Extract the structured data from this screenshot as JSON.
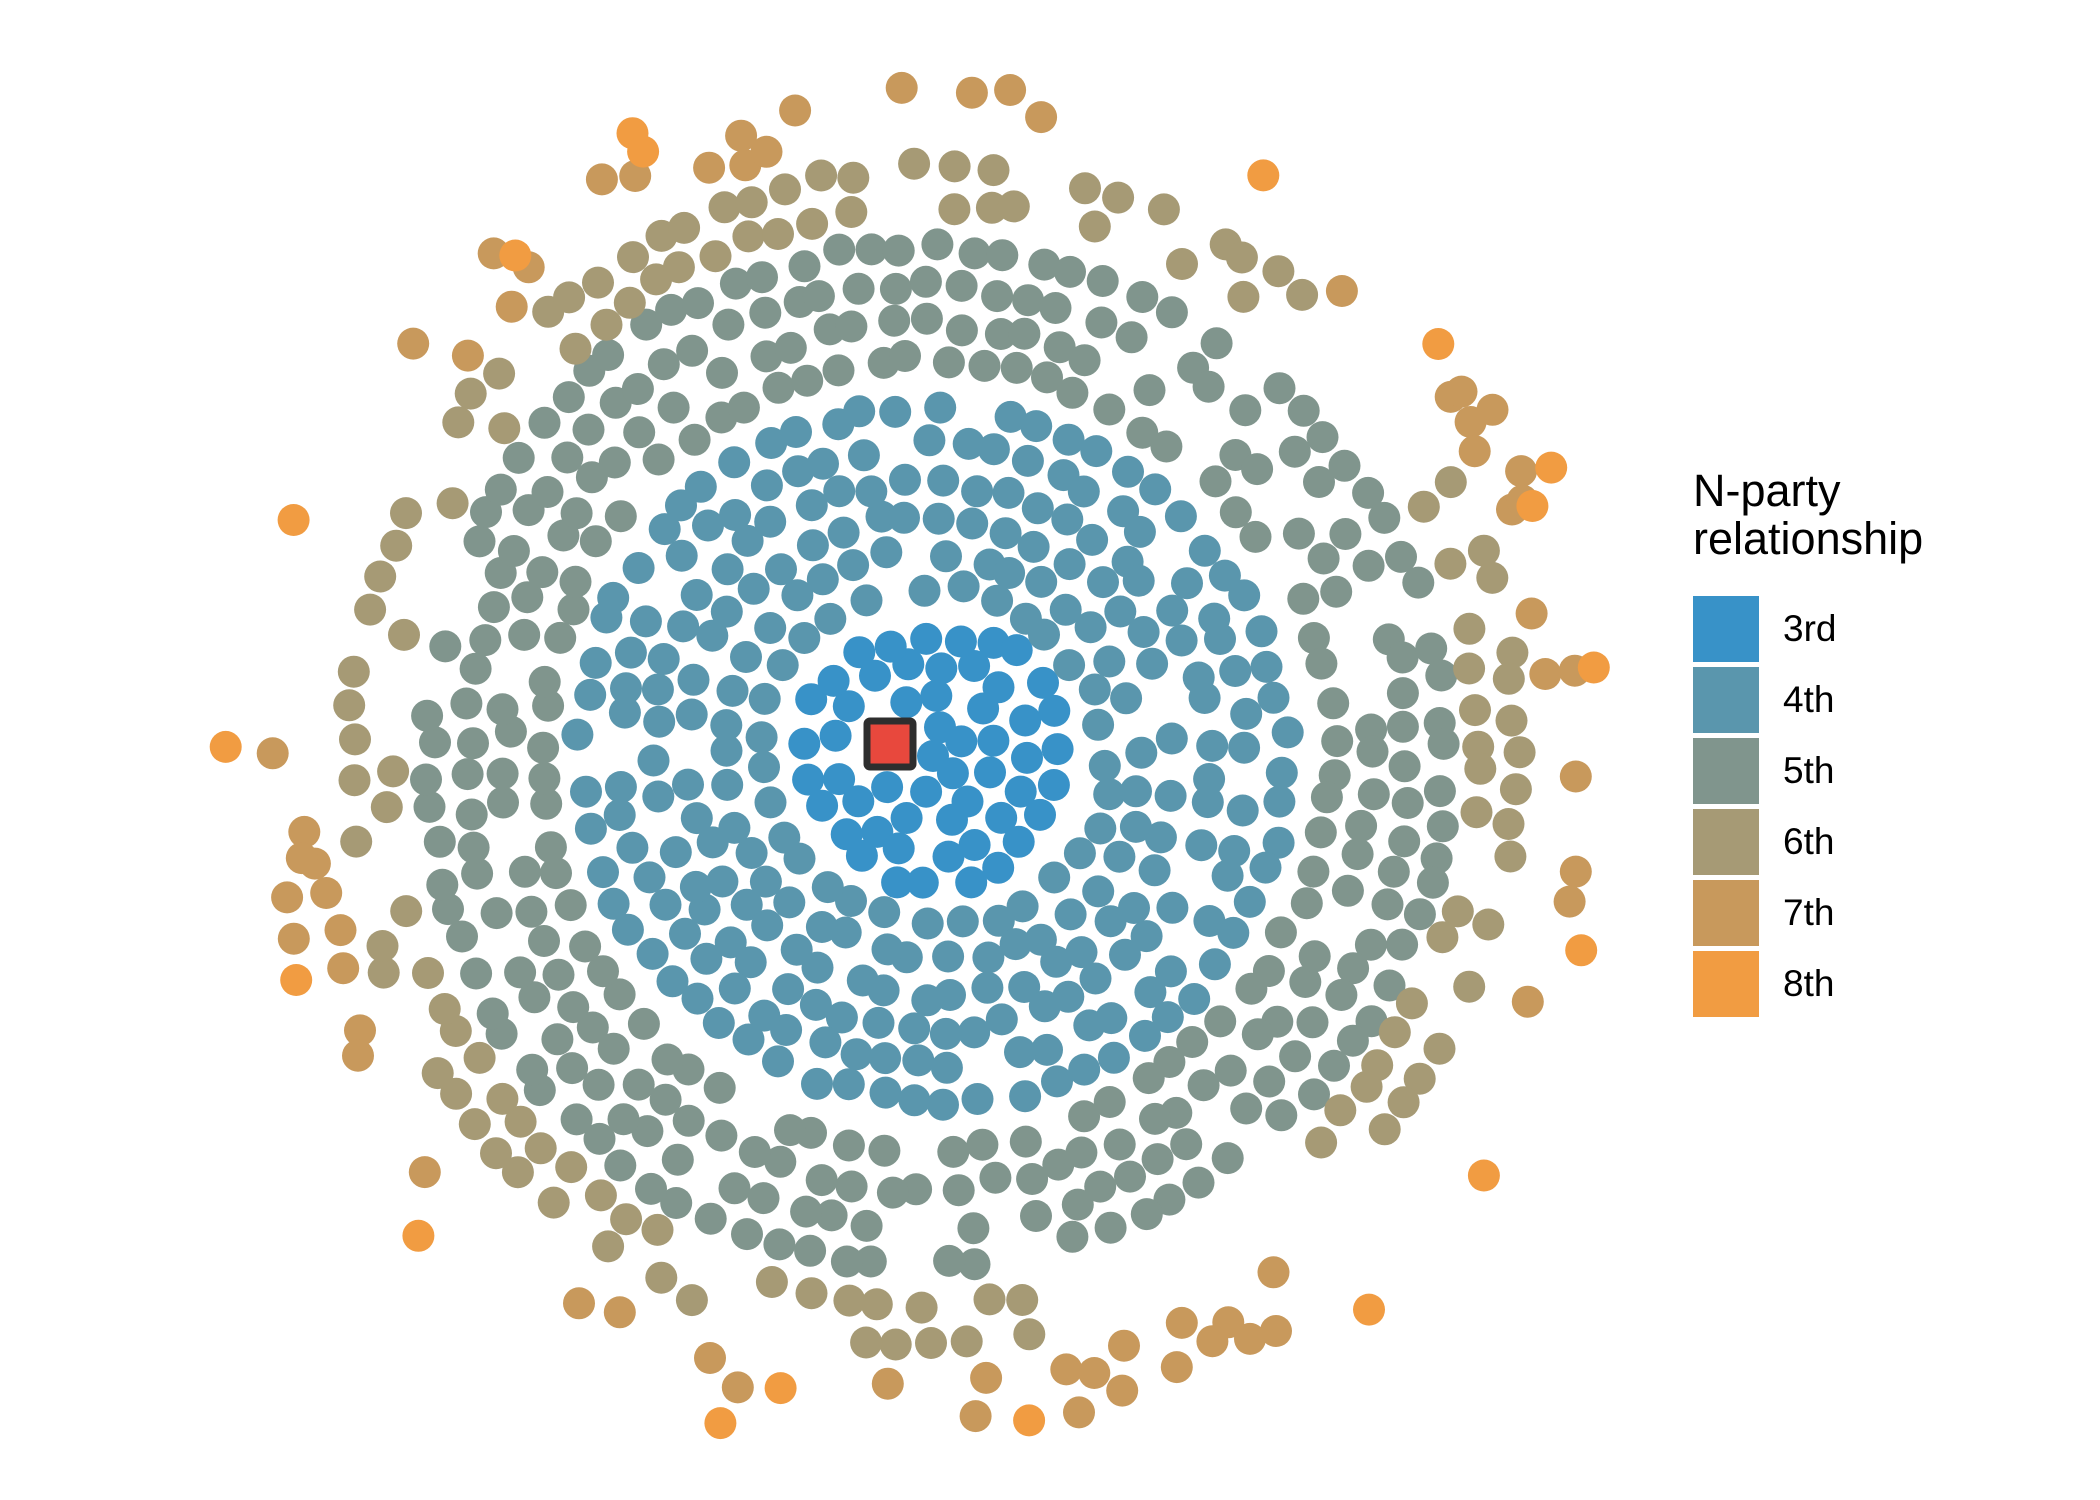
{
  "chart_data": {
    "type": "dot-distribution",
    "description": "Concentric rings of dots around a focal individual (red square); each dot is one person, colored by degree of N-party relationship to the focal individual. Counts are estimated from the figure.",
    "legend_title": "N-party relationship",
    "categories": [
      "3rd",
      "4th",
      "5th",
      "6th",
      "7th",
      "8th"
    ],
    "series": [
      {
        "name": "3rd",
        "color": "#3892C8",
        "count": 62,
        "ring": {
          "r_inner": 0,
          "r_outer": 142
        }
      },
      {
        "name": "4th",
        "color": "#5A96AD",
        "count": 265,
        "ring": {
          "r_inner": 156,
          "r_outer": 364
        }
      },
      {
        "name": "5th",
        "color": "#80958D",
        "count": 300,
        "ring": {
          "r_inner": 379,
          "r_outer": 524
        }
      },
      {
        "name": "6th",
        "color": "#A69A75",
        "count": 122,
        "ring": {
          "r_inner": 532,
          "r_outer": 602
        }
      },
      {
        "name": "7th",
        "color": "#C8995C",
        "count": 54,
        "ring": {
          "r_inner": 610,
          "r_outer": 672
        },
        "scatter_extra": true
      },
      {
        "name": "8th",
        "color": "#F19C42",
        "count": 18,
        "ring": {
          "r_inner": 638,
          "r_outer": 716
        },
        "scatter": true
      }
    ],
    "center": {
      "x": 933,
      "y": 756
    },
    "dot_radius": 16,
    "focal_marker": {
      "shape": "square",
      "x": 890,
      "y": 744,
      "size": 46,
      "fill": "#E8483D",
      "stroke": "#2E2E2E",
      "stroke_width": 7
    },
    "background": "#FFFFFF",
    "legend_position": "right",
    "grid": false
  },
  "legend": {
    "title_line1": "N-party",
    "title_line2": "relationship",
    "items": [
      {
        "label": "3rd",
        "color": "#3892C8"
      },
      {
        "label": "4th",
        "color": "#5A96AD"
      },
      {
        "label": "5th",
        "color": "#80958D"
      },
      {
        "label": "6th",
        "color": "#A69A75"
      },
      {
        "label": "7th",
        "color": "#C8995C"
      },
      {
        "label": "8th",
        "color": "#F19C42"
      }
    ]
  }
}
